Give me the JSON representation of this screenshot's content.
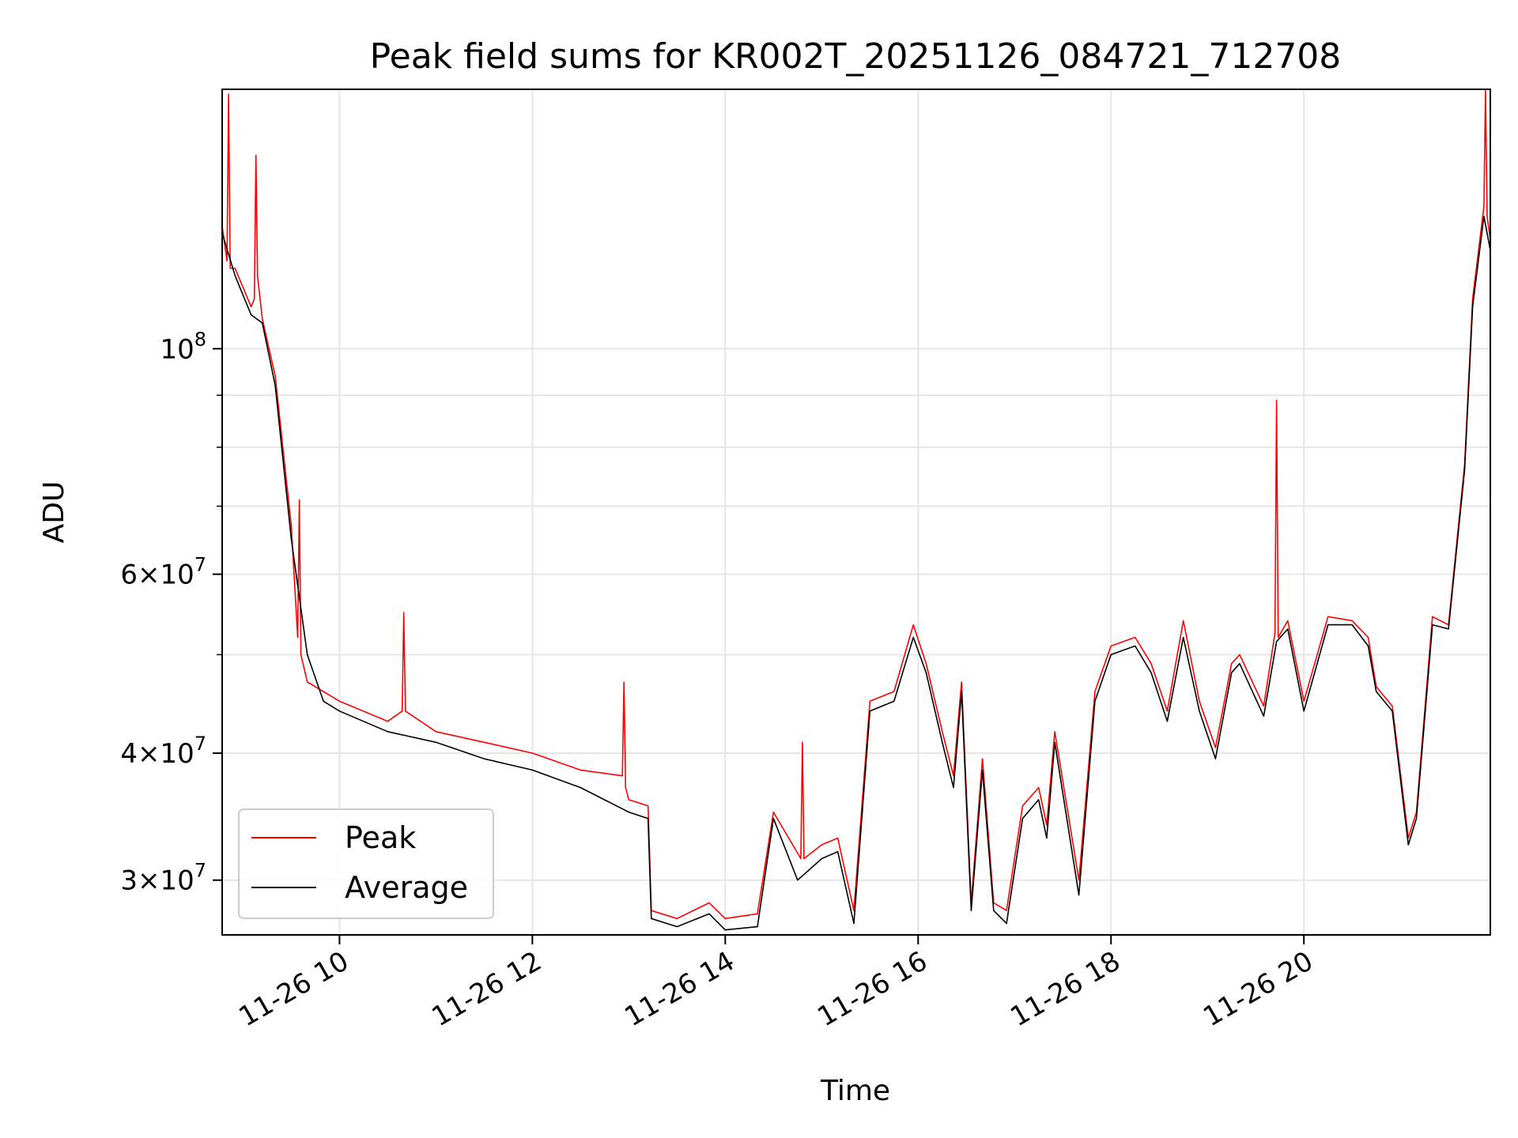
{
  "chart_data": {
    "type": "line",
    "title": "Peak field sums for KR002T_20251126_084721_712708",
    "xlabel": "Time",
    "ylabel": "ADU",
    "y_scale": "log",
    "xlim": [
      "2025-11-26 08:47",
      "2025-11-26 21:56"
    ],
    "ylim": [
      26500000,
      180000000
    ],
    "grid": true,
    "legend_placement": "lower-left",
    "x_ticks": [
      {
        "value": "2025-11-26 10:00",
        "label": "11-26 10"
      },
      {
        "value": "2025-11-26 12:00",
        "label": "11-26 12"
      },
      {
        "value": "2025-11-26 14:00",
        "label": "11-26 14"
      },
      {
        "value": "2025-11-26 16:00",
        "label": "11-26 16"
      },
      {
        "value": "2025-11-26 18:00",
        "label": "11-26 18"
      },
      {
        "value": "2025-11-26 20:00",
        "label": "11-26 20"
      }
    ],
    "y_ticks": [
      {
        "value": 30000000,
        "mantissa": "3",
        "exponent": "7"
      },
      {
        "value": 40000000,
        "mantissa": "4",
        "exponent": "7"
      },
      {
        "value": 60000000,
        "mantissa": "6",
        "exponent": "7"
      },
      {
        "value": 100000000,
        "mantissa": "",
        "exponent": "8"
      }
    ],
    "y_minor_ticks": [
      50000000,
      70000000,
      80000000,
      90000000
    ],
    "series": [
      {
        "name": "Average",
        "color": "#000000",
        "x": [
          "2025-11-26 08:47",
          "2025-11-26 08:55",
          "2025-11-26 09:05",
          "2025-11-26 09:12",
          "2025-11-26 09:20",
          "2025-11-26 09:30",
          "2025-11-26 09:40",
          "2025-11-26 09:50",
          "2025-11-26 10:00",
          "2025-11-26 10:30",
          "2025-11-26 11:00",
          "2025-11-26 11:30",
          "2025-11-26 12:00",
          "2025-11-26 12:30",
          "2025-11-26 13:00",
          "2025-11-26 13:12",
          "2025-11-26 13:14",
          "2025-11-26 13:30",
          "2025-11-26 13:50",
          "2025-11-26 14:00",
          "2025-11-26 14:20",
          "2025-11-26 14:30",
          "2025-11-26 14:45",
          "2025-11-26 15:00",
          "2025-11-26 15:10",
          "2025-11-26 15:20",
          "2025-11-26 15:30",
          "2025-11-26 15:45",
          "2025-11-26 15:57",
          "2025-11-26 16:05",
          "2025-11-26 16:15",
          "2025-11-26 16:22",
          "2025-11-26 16:27",
          "2025-11-26 16:33",
          "2025-11-26 16:40",
          "2025-11-26 16:47",
          "2025-11-26 16:55",
          "2025-11-26 17:05",
          "2025-11-26 17:15",
          "2025-11-26 17:20",
          "2025-11-26 17:25",
          "2025-11-26 17:40",
          "2025-11-26 17:50",
          "2025-11-26 18:00",
          "2025-11-26 18:15",
          "2025-11-26 18:25",
          "2025-11-26 18:35",
          "2025-11-26 18:45",
          "2025-11-26 18:55",
          "2025-11-26 19:05",
          "2025-11-26 19:15",
          "2025-11-26 19:20",
          "2025-11-26 19:35",
          "2025-11-26 19:43",
          "2025-11-26 19:50",
          "2025-11-26 20:00",
          "2025-11-26 20:15",
          "2025-11-26 20:30",
          "2025-11-26 20:40",
          "2025-11-26 20:45",
          "2025-11-26 20:55",
          "2025-11-26 21:05",
          "2025-11-26 21:10",
          "2025-11-26 21:20",
          "2025-11-26 21:30",
          "2025-11-26 21:40",
          "2025-11-26 21:45",
          "2025-11-26 21:52",
          "2025-11-26 21:56"
        ],
        "values": [
          130000000,
          118000000,
          108000000,
          106000000,
          92000000,
          65000000,
          50000000,
          45000000,
          44000000,
          42000000,
          41000000,
          39500000,
          38500000,
          37000000,
          35000000,
          34500000,
          27500000,
          27000000,
          27800000,
          26800000,
          27000000,
          34500000,
          30000000,
          31500000,
          32000000,
          27200000,
          44000000,
          45000000,
          52000000,
          48000000,
          41000000,
          37000000,
          46000000,
          28000000,
          38500000,
          28000000,
          27200000,
          34500000,
          36000000,
          33000000,
          41000000,
          29000000,
          45000000,
          50000000,
          51000000,
          48000000,
          43000000,
          52000000,
          44000000,
          39500000,
          48000000,
          49000000,
          43500000,
          51500000,
          53000000,
          44000000,
          53500000,
          53500000,
          51000000,
          46000000,
          44000000,
          32500000,
          34500000,
          53500000,
          53000000,
          76000000,
          110000000,
          135000000,
          125000000
        ]
      },
      {
        "name": "Peak",
        "color": "#ff0000",
        "x": [
          "2025-11-26 08:47",
          "2025-11-26 08:50",
          "2025-11-26 08:51",
          "2025-11-26 08:52",
          "2025-11-26 08:55",
          "2025-11-26 09:05",
          "2025-11-26 09:07",
          "2025-11-26 09:08",
          "2025-11-26 09:09",
          "2025-11-26 09:12",
          "2025-11-26 09:20",
          "2025-11-26 09:30",
          "2025-11-26 09:34",
          "2025-11-26 09:35",
          "2025-11-26 09:36",
          "2025-11-26 09:40",
          "2025-11-26 09:50",
          "2025-11-26 10:00",
          "2025-11-26 10:30",
          "2025-11-26 10:39",
          "2025-11-26 10:40",
          "2025-11-26 10:41",
          "2025-11-26 11:00",
          "2025-11-26 11:30",
          "2025-11-26 12:00",
          "2025-11-26 12:30",
          "2025-11-26 12:56",
          "2025-11-26 12:57",
          "2025-11-26 12:58",
          "2025-11-26 13:00",
          "2025-11-26 13:12",
          "2025-11-26 13:14",
          "2025-11-26 13:30",
          "2025-11-26 13:50",
          "2025-11-26 14:00",
          "2025-11-26 14:20",
          "2025-11-26 14:30",
          "2025-11-26 14:47",
          "2025-11-26 14:48",
          "2025-11-26 14:49",
          "2025-11-26 15:00",
          "2025-11-26 15:10",
          "2025-11-26 15:20",
          "2025-11-26 15:30",
          "2025-11-26 15:45",
          "2025-11-26 15:57",
          "2025-11-26 16:05",
          "2025-11-26 16:15",
          "2025-11-26 16:22",
          "2025-11-26 16:27",
          "2025-11-26 16:33",
          "2025-11-26 16:40",
          "2025-11-26 16:47",
          "2025-11-26 16:55",
          "2025-11-26 17:05",
          "2025-11-26 17:15",
          "2025-11-26 17:20",
          "2025-11-26 17:25",
          "2025-11-26 17:40",
          "2025-11-26 17:50",
          "2025-11-26 18:00",
          "2025-11-26 18:15",
          "2025-11-26 18:25",
          "2025-11-26 18:35",
          "2025-11-26 18:45",
          "2025-11-26 18:55",
          "2025-11-26 19:05",
          "2025-11-26 19:15",
          "2025-11-26 19:20",
          "2025-11-26 19:35",
          "2025-11-26 19:42",
          "2025-11-26 19:43",
          "2025-11-26 19:44",
          "2025-11-26 19:50",
          "2025-11-26 20:00",
          "2025-11-26 20:15",
          "2025-11-26 20:30",
          "2025-11-26 20:40",
          "2025-11-26 20:45",
          "2025-11-26 20:55",
          "2025-11-26 21:05",
          "2025-11-26 21:10",
          "2025-11-26 21:20",
          "2025-11-26 21:30",
          "2025-11-26 21:40",
          "2025-11-26 21:45",
          "2025-11-26 21:52",
          "2025-11-26 21:53",
          "2025-11-26 21:54",
          "2025-11-26 21:56"
        ],
        "values": [
          132000000,
          122000000,
          178000000,
          120000000,
          120000000,
          110000000,
          112000000,
          155000000,
          118000000,
          107000000,
          94000000,
          67000000,
          52000000,
          71000000,
          50000000,
          47000000,
          46000000,
          45000000,
          43000000,
          44000000,
          55000000,
          44000000,
          42000000,
          41000000,
          40000000,
          38500000,
          38000000,
          47000000,
          37000000,
          36000000,
          35500000,
          28000000,
          27500000,
          28500000,
          27500000,
          27800000,
          35000000,
          31500000,
          41000000,
          31500000,
          32500000,
          33000000,
          28000000,
          45000000,
          46000000,
          53500000,
          49000000,
          42000000,
          38000000,
          47000000,
          28500000,
          39500000,
          28500000,
          28000000,
          35500000,
          37000000,
          34000000,
          42000000,
          30000000,
          46000000,
          51000000,
          52000000,
          49000000,
          44000000,
          54000000,
          45000000,
          40500000,
          49000000,
          50000000,
          44500000,
          52500000,
          89000000,
          52000000,
          54000000,
          45000000,
          54500000,
          54000000,
          52000000,
          46500000,
          44500000,
          33000000,
          35000000,
          54500000,
          53500000,
          77000000,
          112000000,
          138000000,
          180000000,
          135000000,
          128000000
        ]
      }
    ],
    "legend": {
      "entries": [
        {
          "label": "Peak",
          "color": "#ff0000"
        },
        {
          "label": "Average",
          "color": "#000000"
        }
      ]
    }
  }
}
